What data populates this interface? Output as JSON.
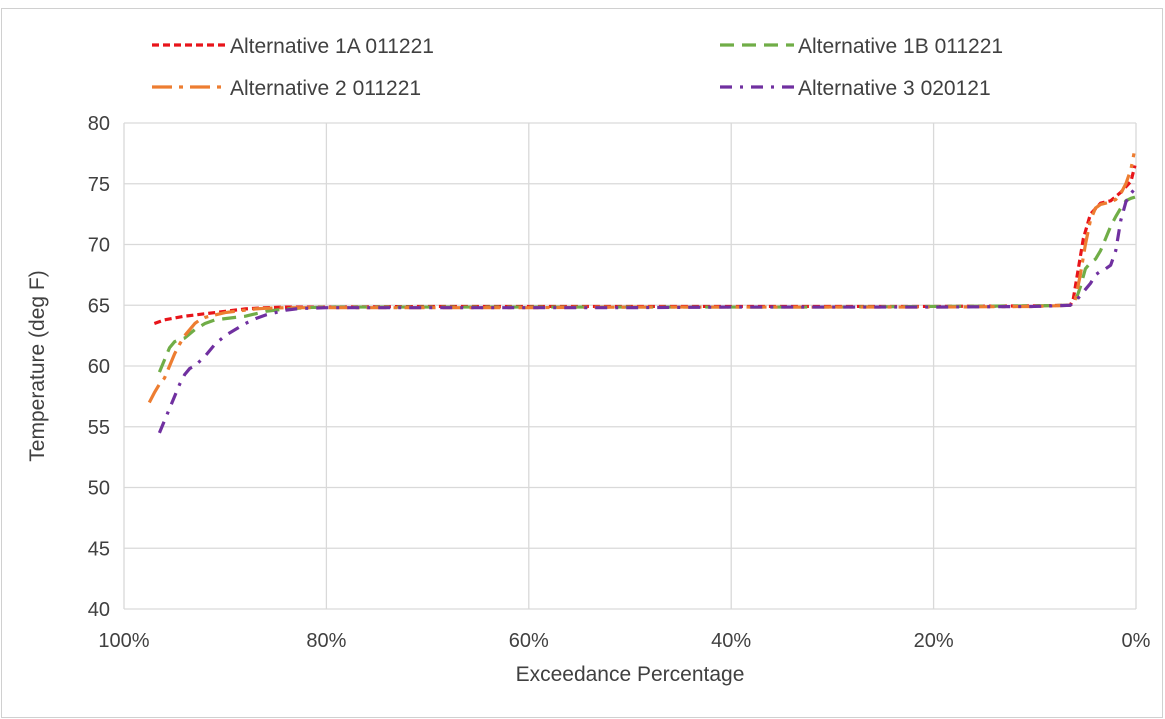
{
  "page_title": "",
  "chart_data": {
    "type": "line",
    "title": "",
    "xlabel": "Exceedance Percentage",
    "ylabel": "Temperature (deg F)",
    "xlim": [
      100,
      0
    ],
    "ylim": [
      40,
      80
    ],
    "x_reversed": true,
    "x_ticks": [
      100,
      80,
      60,
      40,
      20,
      0
    ],
    "x_tick_labels": [
      "100%",
      "80%",
      "60%",
      "40%",
      "20%",
      "0%"
    ],
    "y_ticks": [
      40,
      45,
      50,
      55,
      60,
      65,
      70,
      75,
      80
    ],
    "y_tick_labels": [
      "40",
      "45",
      "50",
      "55",
      "60",
      "65",
      "70",
      "75",
      "80"
    ],
    "grid": true,
    "legend_position": "top",
    "series": [
      {
        "name": "Alternative 1A 011221",
        "color": "#e8141a",
        "dash": "short-dash",
        "x": [
          97,
          96,
          94,
          92,
          90,
          88,
          86,
          84,
          82,
          80,
          70,
          60,
          50,
          40,
          30,
          20,
          10,
          6.5,
          6.2,
          5.8,
          5.2,
          4.5,
          3.5,
          2.5,
          1.5,
          0.5,
          0.1
        ],
        "y": [
          63.5,
          63.8,
          64.1,
          64.3,
          64.5,
          64.7,
          64.8,
          64.85,
          64.85,
          64.85,
          64.9,
          64.9,
          64.9,
          64.9,
          64.9,
          64.9,
          64.95,
          65.0,
          65.5,
          67.5,
          70.5,
          72.5,
          73.4,
          73.6,
          74.3,
          75.2,
          76.5
        ]
      },
      {
        "name": "Alternative 1B 011221",
        "color": "#70ad47",
        "dash": "dash",
        "x": [
          96.5,
          96,
          95.5,
          95,
          94.5,
          94,
          93,
          92,
          91,
          90,
          89,
          88,
          87,
          86,
          85,
          84,
          82,
          80,
          70,
          60,
          50,
          40,
          30,
          20,
          10,
          6.5,
          6.0,
          5.5,
          5.0,
          4.5,
          4.0,
          3.5,
          3.0,
          2.5,
          2.0,
          1.5,
          1.0,
          0.5,
          0.1
        ],
        "y": [
          59.5,
          60.5,
          61.5,
          62.0,
          62.2,
          62.3,
          63.0,
          63.5,
          63.8,
          63.9,
          64.0,
          64.1,
          64.3,
          64.5,
          64.6,
          64.7,
          64.8,
          64.85,
          64.85,
          64.85,
          64.85,
          64.85,
          64.85,
          64.9,
          64.95,
          65.0,
          65.3,
          66.5,
          68.0,
          68.5,
          68.8,
          69.5,
          70.5,
          71.5,
          72.3,
          73.0,
          73.6,
          73.8,
          73.9
        ]
      },
      {
        "name": "Alternative 2 011221",
        "color": "#ed7d31",
        "dash": "long-dash-dot",
        "x": [
          97.5,
          97,
          96.5,
          96,
          95.5,
          95,
          94.5,
          94,
          93.5,
          93,
          92.5,
          92,
          91,
          90,
          89,
          88,
          87,
          86,
          84,
          82,
          80,
          70,
          60,
          50,
          40,
          30,
          20,
          10,
          6.5,
          6.0,
          5.5,
          5.0,
          4.5,
          4.0,
          3.5,
          3.0,
          2.5,
          2.0,
          1.5,
          1.0,
          0.5,
          0.2
        ],
        "y": [
          57.0,
          57.8,
          58.5,
          59.0,
          60.0,
          61.0,
          61.8,
          62.5,
          63.0,
          63.5,
          63.8,
          64.0,
          64.2,
          64.4,
          64.5,
          64.6,
          64.7,
          64.75,
          64.8,
          64.8,
          64.8,
          64.8,
          64.8,
          64.85,
          64.85,
          64.85,
          64.85,
          64.9,
          65.0,
          65.5,
          67.5,
          70.0,
          72.0,
          73.0,
          73.3,
          73.4,
          73.5,
          73.7,
          74.2,
          75.0,
          76.2,
          77.5
        ]
      },
      {
        "name": "Alternative 3 020121",
        "color": "#7030a0",
        "dash": "dash-dot",
        "x": [
          96.5,
          96,
          95.5,
          95,
          94.5,
          94,
          93.5,
          93,
          92.5,
          92,
          91,
          90,
          89,
          88,
          87,
          86,
          85,
          84,
          83,
          82,
          80,
          70,
          60,
          50,
          40,
          30,
          20,
          10,
          6.5,
          6.0,
          5.5,
          5.0,
          4.5,
          4.0,
          3.5,
          3.0,
          2.5,
          2.0,
          1.5,
          1.0,
          0.5,
          0.2
        ],
        "y": [
          54.5,
          55.5,
          56.5,
          57.5,
          58.5,
          59.3,
          59.8,
          60.0,
          60.4,
          60.8,
          61.8,
          62.5,
          63.0,
          63.5,
          63.9,
          64.2,
          64.4,
          64.6,
          64.7,
          64.75,
          64.8,
          64.8,
          64.8,
          64.8,
          64.85,
          64.85,
          64.85,
          64.9,
          65.0,
          65.3,
          65.8,
          66.3,
          66.8,
          67.5,
          67.8,
          68.0,
          68.3,
          69.5,
          72.0,
          73.5,
          74.2,
          74.5
        ]
      }
    ]
  }
}
